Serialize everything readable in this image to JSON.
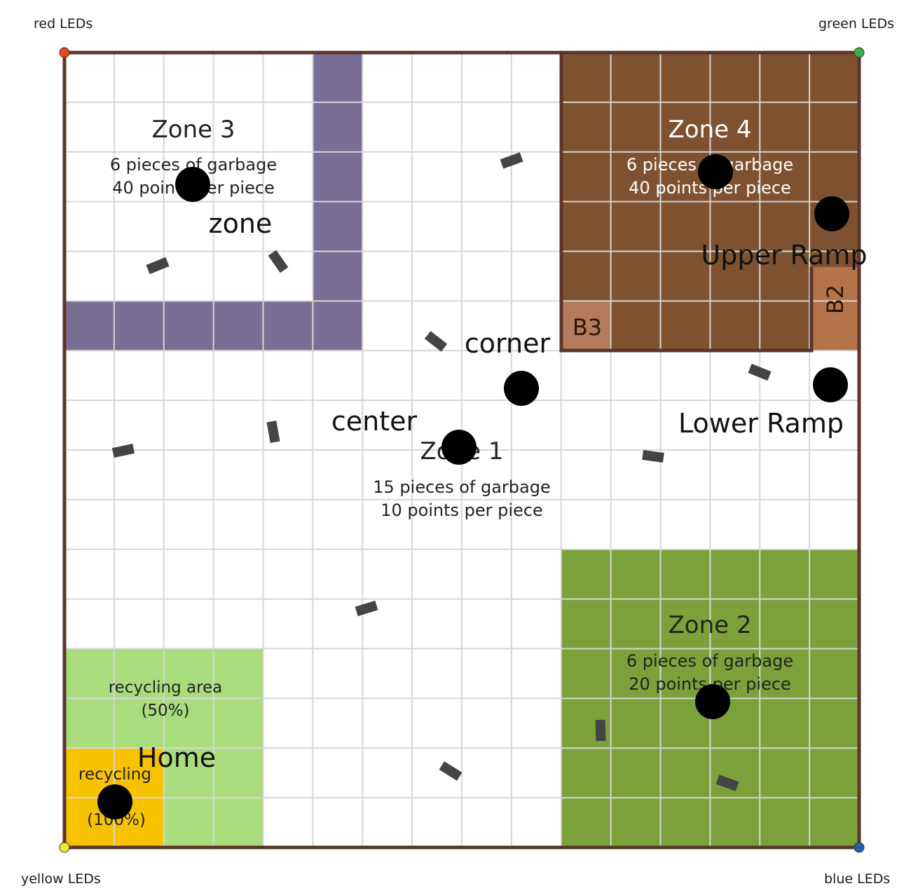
{
  "corners": {
    "top_left": {
      "label": "red LEDs",
      "color": "#e8491d"
    },
    "top_right": {
      "label": "green LEDs",
      "color": "#3fae47"
    },
    "bottom_left": {
      "label": "yellow LEDs",
      "color": "#f6e634"
    },
    "bottom_right": {
      "label": "blue LEDs",
      "color": "#1f5fb0"
    }
  },
  "zones": {
    "zone1": {
      "title": "Zone 1",
      "line1": "15 pieces of garbage",
      "line2": "10 points per piece"
    },
    "zone2": {
      "title": "Zone 2",
      "line1": "6 pieces of garbage",
      "line2": "20 points per piece",
      "color": "#7ba23a"
    },
    "zone3": {
      "title": "Zone 3",
      "line1": "6 pieces of garbage",
      "line2": "40 points per piece",
      "wall_color": "#7a6e94"
    },
    "zone4": {
      "title": "Zone 4",
      "line1": "6 pieces of garbage",
      "line2": "40 points per piece",
      "color": "#7e5231"
    }
  },
  "areas": {
    "recycling_area": {
      "line1": "recycling area",
      "line2": "(50%)",
      "color": "#a8dc7c"
    },
    "recycling": {
      "line1": "recycling",
      "line2": "(100%)",
      "color": "#f7c200"
    }
  },
  "ramps": {
    "b2": "B2",
    "b3": "B3",
    "ramp_color": "#b5734a",
    "b3_color": "#b47a5c"
  },
  "markers": {
    "zone": "zone",
    "upper_ramp": "Upper Ramp",
    "corner": "corner",
    "center": "center",
    "lower_ramp": "Lower Ramp",
    "home": "Home"
  },
  "colors": {
    "border": "#5b3529",
    "grid": "#d6d6d6",
    "garbage": "#444444"
  }
}
